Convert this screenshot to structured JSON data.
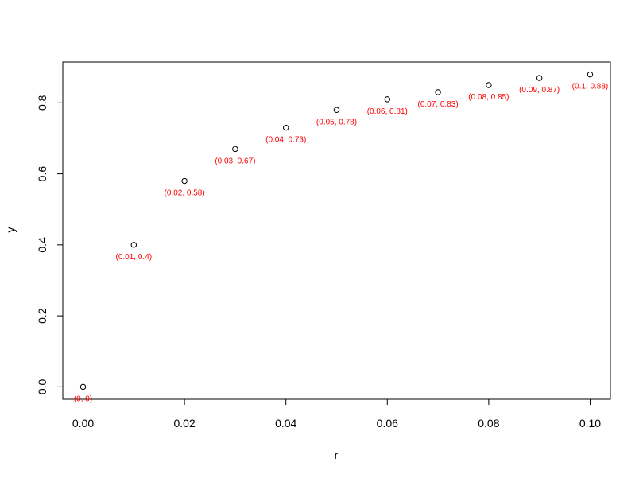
{
  "chart_data": {
    "type": "scatter",
    "title": "",
    "xlabel": "r",
    "ylabel": "y",
    "xlim": [
      -0.004,
      0.104
    ],
    "ylim": [
      -0.035,
      0.915
    ],
    "x_ticks": [
      0.0,
      0.02,
      0.04,
      0.06,
      0.08,
      0.1
    ],
    "x_tick_labels": [
      "0.00",
      "0.02",
      "0.04",
      "0.06",
      "0.08",
      "0.10"
    ],
    "y_ticks": [
      0.0,
      0.2,
      0.4,
      0.6,
      0.8
    ],
    "y_tick_labels": [
      "0.0",
      "0.2",
      "0.4",
      "0.6",
      "0.8"
    ],
    "grid": false,
    "legend": "none",
    "marker_color": "#000000",
    "label_color": "#ff0000",
    "points": [
      {
        "x": 0.0,
        "y": 0.0,
        "label": "(0, 0)"
      },
      {
        "x": 0.01,
        "y": 0.4,
        "label": "(0.01, 0.4)"
      },
      {
        "x": 0.02,
        "y": 0.58,
        "label": "(0.02, 0.58)"
      },
      {
        "x": 0.03,
        "y": 0.67,
        "label": "(0.03, 0.67)"
      },
      {
        "x": 0.04,
        "y": 0.73,
        "label": "(0.04, 0.73)"
      },
      {
        "x": 0.05,
        "y": 0.78,
        "label": "(0.05, 0.78)"
      },
      {
        "x": 0.06,
        "y": 0.81,
        "label": "(0.06, 0.81)"
      },
      {
        "x": 0.07,
        "y": 0.83,
        "label": "(0.07, 0.83)"
      },
      {
        "x": 0.08,
        "y": 0.85,
        "label": "(0.08, 0.85)"
      },
      {
        "x": 0.09,
        "y": 0.87,
        "label": "(0.09, 0.87)"
      },
      {
        "x": 0.1,
        "y": 0.88,
        "label": "(0.1, 0.88)"
      }
    ]
  }
}
